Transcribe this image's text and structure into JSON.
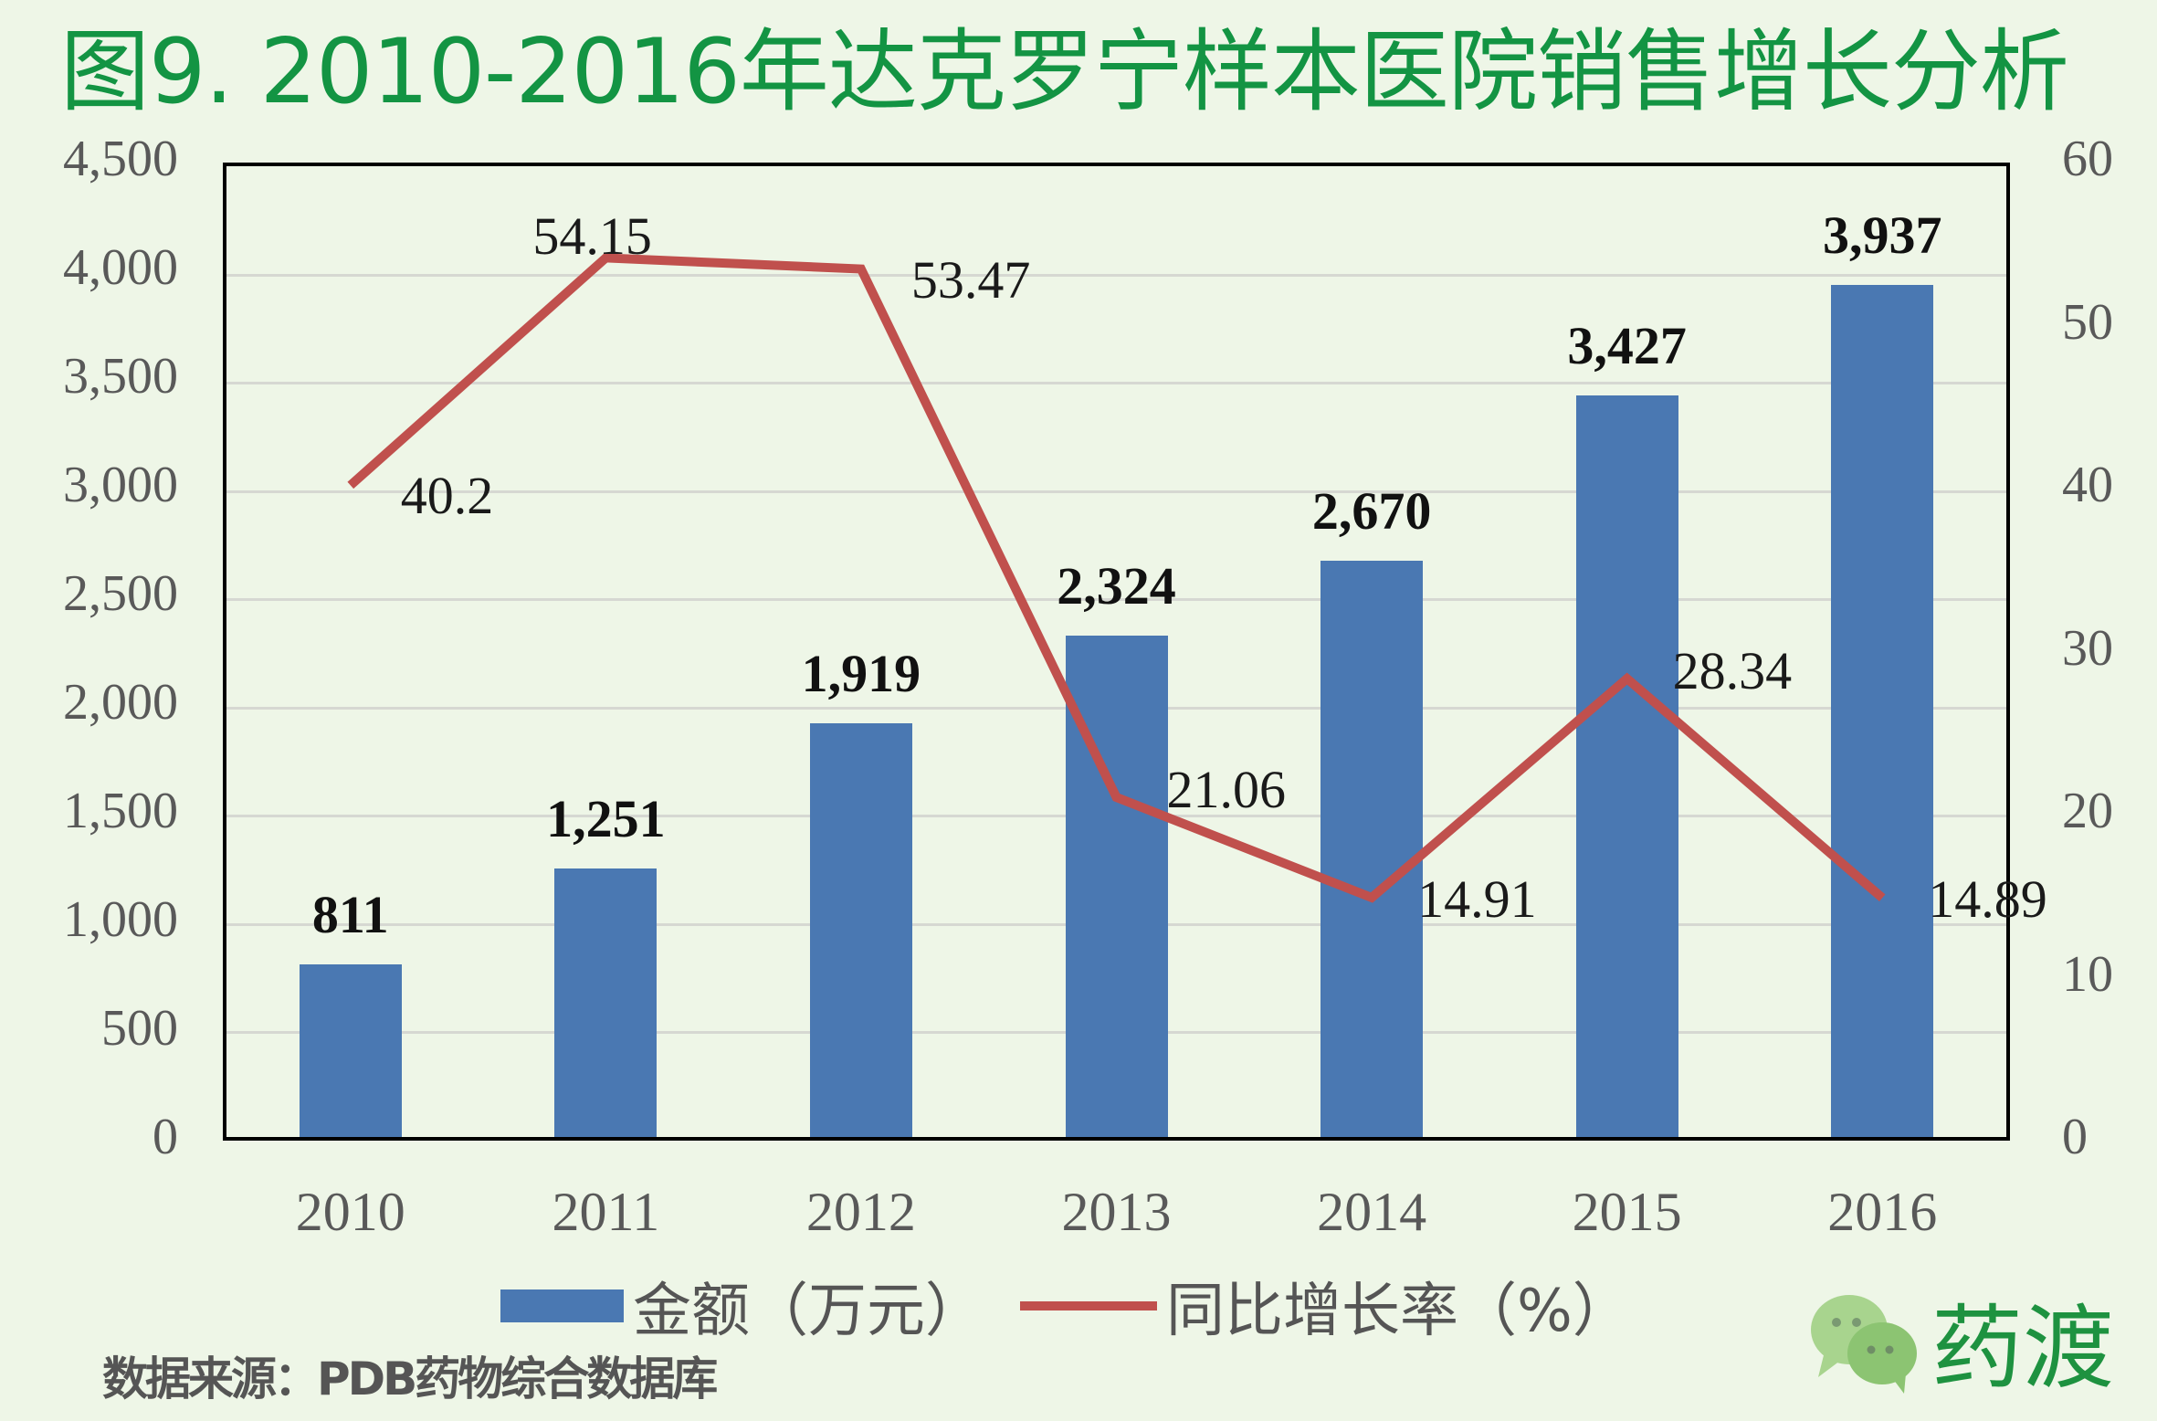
{
  "title": "图9. 2010-2016年达克罗宁样本医院销售增长分析",
  "legend": {
    "bar_label": "金额（万元）",
    "line_label": "同比增长率（%）"
  },
  "source": "数据来源：PDB药物综合数据库",
  "brand": {
    "name": "药渡",
    "icon": "wechat-icon"
  },
  "colors": {
    "bar": "#4A78B2",
    "line": "#C0504D",
    "title": "#139443",
    "background": "#EEF6E7"
  },
  "axes": {
    "left_ticks": [
      "0",
      "500",
      "1,000",
      "1,500",
      "2,000",
      "2,500",
      "3,000",
      "3,500",
      "4,000",
      "4,500"
    ],
    "right_ticks": [
      "0",
      "10",
      "20",
      "30",
      "40",
      "50",
      "60"
    ]
  },
  "bar_labels": [
    "811",
    "1,251",
    "1,919",
    "2,324",
    "2,670",
    "3,427",
    "3,937"
  ],
  "line_labels": [
    "40.2",
    "54.15",
    "53.47",
    "21.06",
    "14.91",
    "28.34",
    "14.89"
  ],
  "chart_data": {
    "type": "bar",
    "title": "图9. 2010-2016年达克罗宁样本医院销售增长分析",
    "categories": [
      "2010",
      "2011",
      "2012",
      "2013",
      "2014",
      "2015",
      "2016"
    ],
    "series": [
      {
        "name": "金额（万元）",
        "type": "bar",
        "axis": "left",
        "values": [
          811,
          1251,
          1919,
          2324,
          2670,
          3427,
          3937
        ]
      },
      {
        "name": "同比增长率（%）",
        "type": "line",
        "axis": "right",
        "values": [
          40.2,
          54.15,
          53.47,
          21.06,
          14.91,
          28.34,
          14.89
        ]
      }
    ],
    "xlabel": "",
    "ylabel": "金额（万元）",
    "y2label": "同比增长率（%）",
    "ylim": [
      0,
      4500
    ],
    "y2lim": [
      0,
      60
    ],
    "yticks": [
      0,
      500,
      1000,
      1500,
      2000,
      2500,
      3000,
      3500,
      4000,
      4500
    ],
    "y2ticks": [
      0,
      10,
      20,
      30,
      40,
      50,
      60
    ],
    "grid": true,
    "legend_position": "bottom",
    "source": "数据来源：PDB药物综合数据库"
  }
}
